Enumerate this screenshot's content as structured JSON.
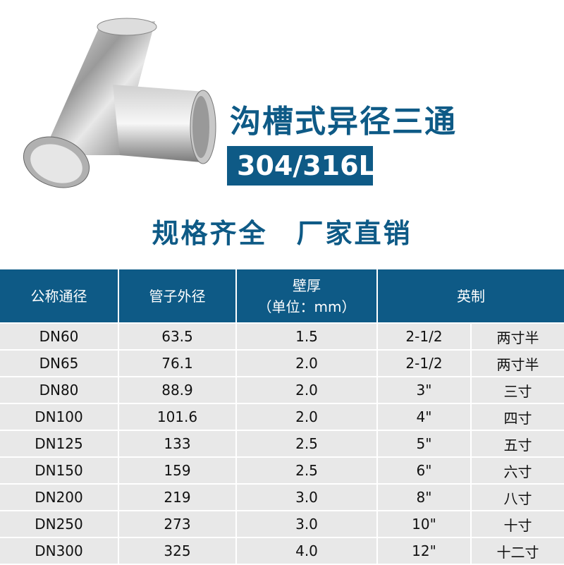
{
  "title": "沟槽式异径三通",
  "material": "304/316L",
  "slogan": "规格齐全　厂家直销",
  "accent_color": "#0e5a86",
  "table": {
    "headers": [
      "公称通径",
      "管子外径",
      "壁厚",
      "（单位：mm）",
      "英制"
    ],
    "rows": [
      [
        "DN60",
        "63.5",
        "1.5",
        "2-1/2",
        "两寸半"
      ],
      [
        "DN65",
        "76.1",
        "2.0",
        "2-1/2",
        "两寸半"
      ],
      [
        "DN80",
        "88.9",
        "2.0",
        "3\"",
        "三寸"
      ],
      [
        "DN100",
        "101.6",
        "2.0",
        "4\"",
        "四寸"
      ],
      [
        "DN125",
        "133",
        "2.5",
        "5\"",
        "五寸"
      ],
      [
        "DN150",
        "159",
        "2.5",
        "6\"",
        "六寸"
      ],
      [
        "DN200",
        "219",
        "3.0",
        "8\"",
        "八寸"
      ],
      [
        "DN250",
        "273",
        "3.0",
        "10\"",
        "十寸"
      ],
      [
        "DN300",
        "325",
        "4.0",
        "12\"",
        "十二寸"
      ]
    ]
  }
}
